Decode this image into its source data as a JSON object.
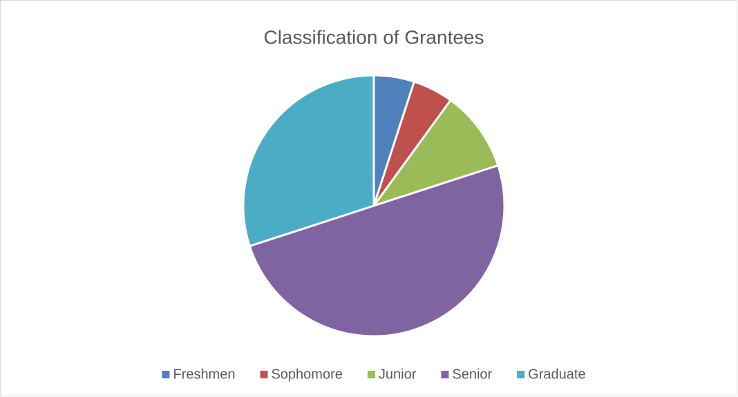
{
  "chart_data": {
    "type": "pie",
    "title": "Classification of Grantees",
    "categories": [
      "Freshmen",
      "Sophomore",
      "Junior",
      "Senior",
      "Graduate"
    ],
    "values": [
      5,
      5,
      10,
      50,
      30
    ],
    "colors": [
      "#4f81bd",
      "#c0504d",
      "#9bbb59",
      "#8064a2",
      "#4bacc6"
    ],
    "legend": "bottom"
  }
}
